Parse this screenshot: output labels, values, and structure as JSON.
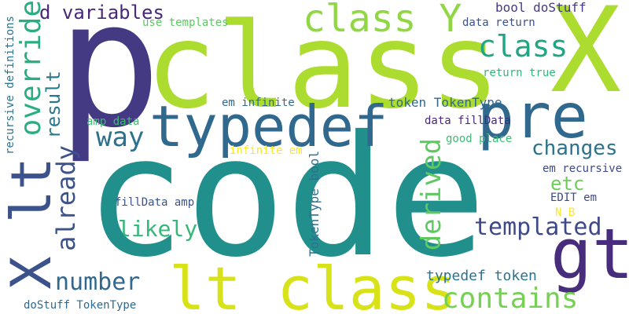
{
  "words": [
    {
      "text": "code",
      "color": "#21908d"
    },
    {
      "text": "p",
      "color": "#443a83"
    },
    {
      "text": "class",
      "color": "#addc30"
    },
    {
      "text": "X",
      "color": "#addc30"
    },
    {
      "text": "typedef",
      "color": "#31688e"
    },
    {
      "text": "pre",
      "color": "#31688e"
    },
    {
      "text": "gt",
      "color": "#472d7b"
    },
    {
      "text": "lt class",
      "color": "#d8e219"
    },
    {
      "text": "X lt",
      "color": "#3b528b"
    },
    {
      "text": "class Y",
      "color": "#90d743"
    },
    {
      "text": "class",
      "color": "#21a685"
    },
    {
      "text": "override",
      "color": "#28ae80"
    },
    {
      "text": "d variables",
      "color": "#482878"
    },
    {
      "text": "way",
      "color": "#2c728e"
    },
    {
      "text": "already",
      "color": "#3b528b"
    },
    {
      "text": "number",
      "color": "#31688e"
    },
    {
      "text": "contains",
      "color": "#75d054"
    },
    {
      "text": "derived",
      "color": "#5ec962"
    },
    {
      "text": "templated",
      "color": "#3e4989"
    },
    {
      "text": "changes",
      "color": "#2c728e"
    },
    {
      "text": "likely",
      "color": "#35b779"
    },
    {
      "text": "result",
      "color": "#2a788e"
    },
    {
      "text": "etc",
      "color": "#6ccd5a"
    },
    {
      "text": "typedef token",
      "color": "#2c728e"
    },
    {
      "text": "token TokenType",
      "color": "#31688e"
    },
    {
      "text": "bool doStuff",
      "color": "#443a83"
    },
    {
      "text": "data return",
      "color": "#3b528b"
    },
    {
      "text": "return true",
      "color": "#35b779"
    },
    {
      "text": "use templates",
      "color": "#5ec962"
    },
    {
      "text": "em infinite",
      "color": "#31688e"
    },
    {
      "text": "amp data",
      "color": "#3dbc74"
    },
    {
      "text": "data fillData",
      "color": "#482878"
    },
    {
      "text": "good place",
      "color": "#3dbc74"
    },
    {
      "text": "infinite em",
      "color": "#fde725"
    },
    {
      "text": "TokenType bool",
      "color": "#2c728e"
    },
    {
      "text": "em recursive",
      "color": "#3e4989"
    },
    {
      "text": "EDIT em",
      "color": "#3e4989"
    },
    {
      "text": "N B",
      "color": "#fde725"
    },
    {
      "text": "fillData amp",
      "color": "#3b528b"
    },
    {
      "text": "recursive definitions",
      "color": "#2c728e"
    },
    {
      "text": "doStuff TokenType",
      "color": "#31688e"
    }
  ]
}
